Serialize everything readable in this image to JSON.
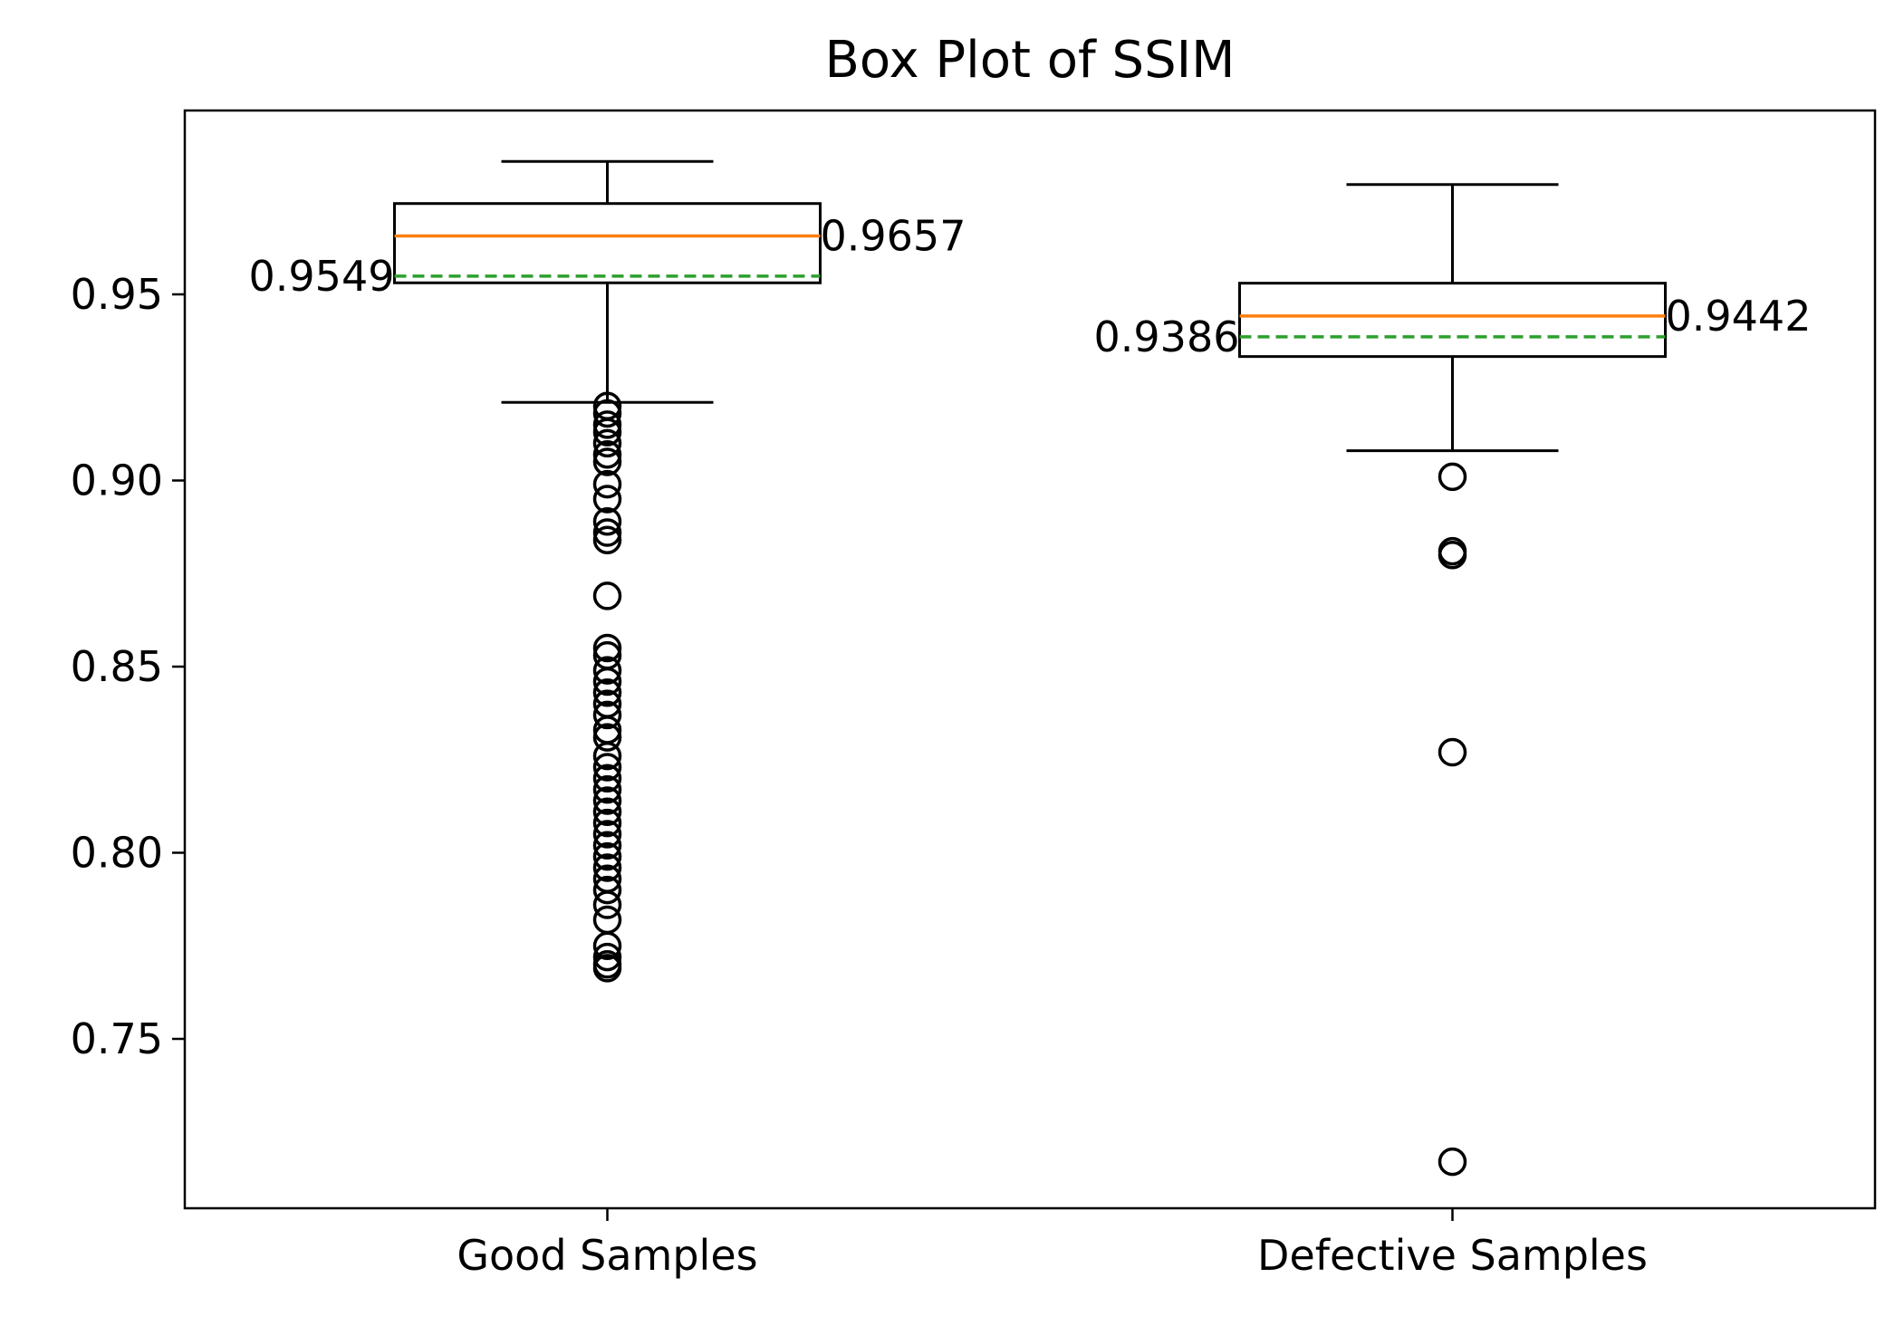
{
  "chart_data": {
    "type": "box",
    "title": "Box Plot of SSIM",
    "xlabel": "",
    "ylabel": "",
    "categories": [
      "Good Samples",
      "Defective Samples"
    ],
    "ylim": [
      0.705,
      1.0
    ],
    "yticks": [
      0.75,
      0.8,
      0.85,
      0.9,
      0.95
    ],
    "ytick_labels": [
      "0.75",
      "0.80",
      "0.85",
      "0.90",
      "0.95"
    ],
    "grid": false,
    "median_color": "#ff7f0e",
    "mean_color": "#2ca02c",
    "series": [
      {
        "category": "Good Samples",
        "whisker_low": 0.921,
        "q1": 0.9531,
        "median": 0.9657,
        "q3": 0.9744,
        "whisker_high": 0.9857,
        "mean": 0.9549,
        "median_label": "0.9657",
        "mean_label": "0.9549",
        "outliers": [
          0.92,
          0.918,
          0.915,
          0.913,
          0.91,
          0.907,
          0.905,
          0.899,
          0.895,
          0.889,
          0.886,
          0.884,
          0.869,
          0.855,
          0.853,
          0.849,
          0.846,
          0.843,
          0.84,
          0.837,
          0.833,
          0.831,
          0.826,
          0.823,
          0.82,
          0.817,
          0.814,
          0.811,
          0.808,
          0.805,
          0.802,
          0.799,
          0.796,
          0.793,
          0.79,
          0.786,
          0.782,
          0.775,
          0.772,
          0.77,
          0.769
        ]
      },
      {
        "category": "Defective Samples",
        "whisker_low": 0.908,
        "q1": 0.9333,
        "median": 0.9442,
        "q3": 0.953,
        "whisker_high": 0.9795,
        "mean": 0.9386,
        "median_label": "0.9442",
        "mean_label": "0.9386",
        "outliers": [
          0.901,
          0.881,
          0.88,
          0.827,
          0.717
        ]
      }
    ]
  }
}
